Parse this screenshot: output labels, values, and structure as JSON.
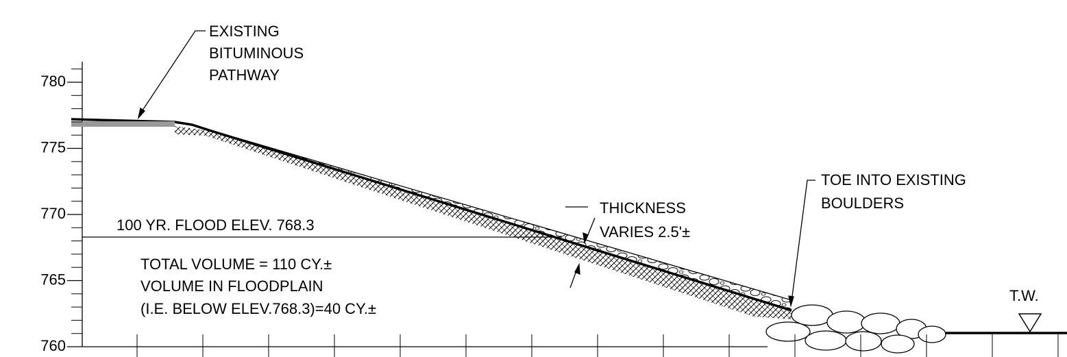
{
  "axis": {
    "yticks": [
      760,
      765,
      770,
      775,
      780
    ],
    "ylim": [
      760,
      780
    ]
  },
  "annotations": {
    "pathway": [
      "EXISTING",
      "BITUMINOUS",
      "PATHWAY"
    ],
    "thickness": [
      "THICKNESS",
      "VARIES 2.5'±"
    ],
    "toe": [
      "TOE INTO EXISTING",
      "BOULDERS"
    ],
    "flood": "100 YR. FLOOD ELEV. 768.3",
    "volume": [
      "TOTAL VOLUME = 110 CY.±",
      "VOLUME IN FLOODPLAIN",
      "(I.E. BELOW ELEV.768.3)=40 CY.±"
    ],
    "tailwater": "T.W."
  }
}
